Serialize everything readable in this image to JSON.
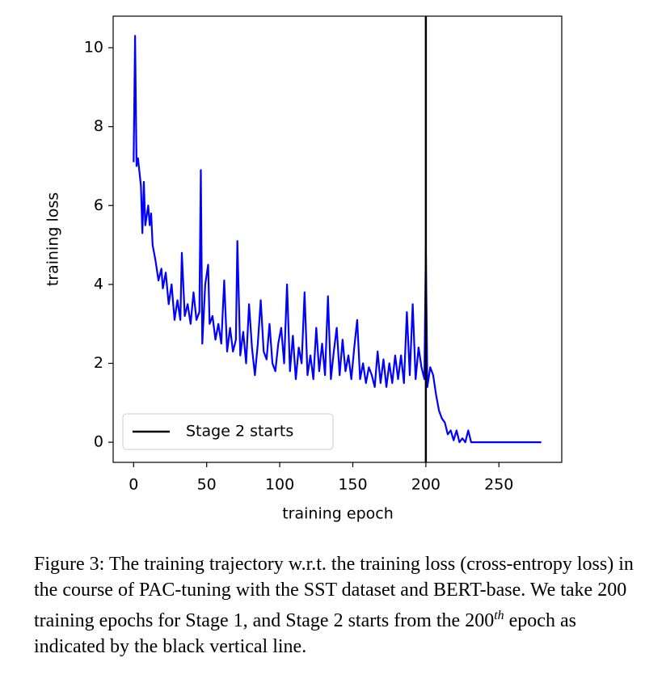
{
  "chart_data": {
    "type": "line",
    "xlabel": "training epoch",
    "ylabel": "training loss",
    "x": [
      0,
      1,
      2,
      3,
      5,
      6,
      7,
      8,
      10,
      11,
      12,
      13,
      15,
      17,
      19,
      20,
      22,
      24,
      26,
      28,
      30,
      32,
      33,
      35,
      37,
      39,
      41,
      43,
      45,
      46,
      47,
      49,
      51,
      52,
      54,
      56,
      58,
      60,
      62,
      64,
      66,
      68,
      70,
      71,
      73,
      75,
      77,
      79,
      81,
      83,
      85,
      87,
      89,
      91,
      93,
      95,
      97,
      99,
      101,
      103,
      105,
      107,
      109,
      111,
      113,
      115,
      117,
      119,
      121,
      123,
      125,
      127,
      129,
      131,
      133,
      135,
      137,
      139,
      141,
      143,
      145,
      147,
      149,
      151,
      153,
      155,
      157,
      159,
      161,
      163,
      165,
      167,
      169,
      171,
      173,
      175,
      177,
      179,
      181,
      183,
      185,
      187,
      189,
      191,
      193,
      195,
      197,
      199,
      200,
      201,
      203,
      205,
      207,
      209,
      211,
      213,
      215,
      217,
      219,
      221,
      223,
      225,
      227,
      229,
      231,
      235,
      240,
      250,
      260,
      270,
      279
    ],
    "values": [
      7.1,
      10.3,
      7.0,
      7.2,
      6.5,
      5.3,
      6.6,
      5.5,
      6.0,
      5.5,
      5.8,
      5.0,
      4.6,
      4.1,
      4.4,
      3.9,
      4.3,
      3.5,
      4.0,
      3.1,
      3.6,
      3.1,
      4.8,
      3.2,
      3.5,
      3.0,
      3.8,
      3.1,
      3.3,
      6.9,
      2.5,
      4.0,
      4.5,
      3.0,
      3.2,
      2.6,
      3.0,
      2.5,
      4.1,
      2.3,
      2.9,
      2.3,
      2.6,
      5.1,
      2.2,
      2.8,
      2.0,
      3.5,
      2.4,
      1.7,
      2.5,
      3.6,
      2.3,
      2.1,
      3.0,
      2.0,
      1.8,
      2.5,
      2.9,
      2.0,
      4.0,
      1.8,
      2.7,
      1.6,
      2.4,
      2.0,
      3.8,
      1.7,
      2.2,
      1.6,
      2.9,
      1.8,
      2.5,
      1.7,
      3.7,
      1.6,
      2.3,
      2.9,
      1.7,
      2.6,
      1.8,
      2.2,
      1.6,
      2.4,
      3.1,
      1.6,
      2.0,
      1.5,
      1.9,
      1.7,
      1.4,
      2.3,
      1.5,
      2.1,
      1.4,
      2.0,
      1.5,
      2.2,
      1.6,
      2.2,
      1.5,
      3.3,
      1.7,
      3.5,
      1.6,
      2.4,
      1.9,
      1.6,
      4.9,
      1.4,
      1.9,
      1.7,
      1.2,
      0.8,
      0.6,
      0.5,
      0.2,
      0.3,
      0.05,
      0.3,
      0.0,
      0.1,
      0.0,
      0.3,
      0.0,
      0.0,
      0.0,
      0.0,
      0.0,
      0.0,
      0.0
    ],
    "color": "#0000ff",
    "vline": {
      "x": 200,
      "name": "Stage 2 starts",
      "color": "#000000"
    },
    "legend": "lower left",
    "xlim": [
      -14,
      293
    ],
    "ylim": [
      -0.51,
      10.8
    ],
    "xticks": [
      0,
      50,
      100,
      150,
      200,
      250
    ],
    "yticks": [
      0,
      2,
      4,
      6,
      8,
      10
    ]
  },
  "caption": {
    "text": "Figure 3: The training trajectory w.r.t. the training loss (cross-entropy loss) in the course of PAC-tuning with the SST dataset and BERT-base. We take 200 training epochs for Stage 1, and Stage 2 starts from the 200",
    "superscript": "th",
    "text_after": " epoch as indicated by the black vertical line."
  }
}
